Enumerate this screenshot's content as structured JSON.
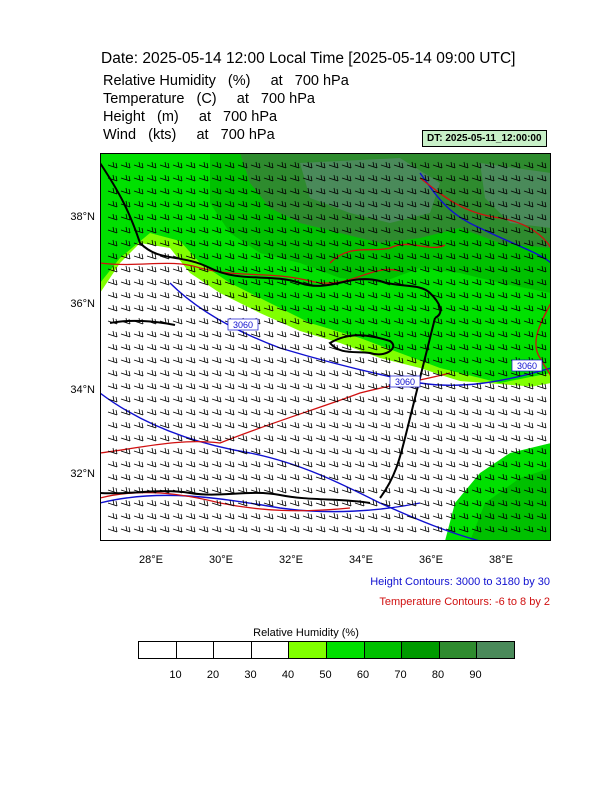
{
  "header": {
    "title": "Date: 2025-05-14  12:00 Local Time [2025-05-14  09:00 UTC]",
    "variables": [
      "Relative Humidity   (%)     at   700 hPa",
      "Temperature   (C)     at   700 hPa",
      "Height   (m)     at   700 hPa",
      "Wind   (kts)     at   700 hPa"
    ],
    "dt_label": "DT: 2025-05-11_12:00:00"
  },
  "map": {
    "lat_labels": [
      "38°N",
      "36°N",
      "34°N",
      "32°N"
    ],
    "lon_labels": [
      "28°E",
      "30°E",
      "32°E",
      "34°E",
      "36°E",
      "38°E"
    ],
    "contour_labels": [
      "3060",
      "3060",
      "3060"
    ],
    "colors": {
      "height_contour": "#1010d0",
      "temperature_contour": "#d01010",
      "coastline": "#000000",
      "wind_barbs": "#000000"
    }
  },
  "notes": {
    "height": "Height Contours: 3000 to 3180 by 30",
    "temperature": "Temperature Contours: -6 to 8 by 2"
  },
  "colorbar": {
    "title": "Relative Humidity  (%)",
    "ticks": [
      "10",
      "20",
      "30",
      "40",
      "50",
      "60",
      "70",
      "80",
      "90"
    ],
    "colors": [
      "#ffffff",
      "#ffffff",
      "#ffffff",
      "#ffffff",
      "#80ff00",
      "#00e000",
      "#00c000",
      "#009a00",
      "#2e8b2e",
      "#4a8a5a"
    ]
  }
}
